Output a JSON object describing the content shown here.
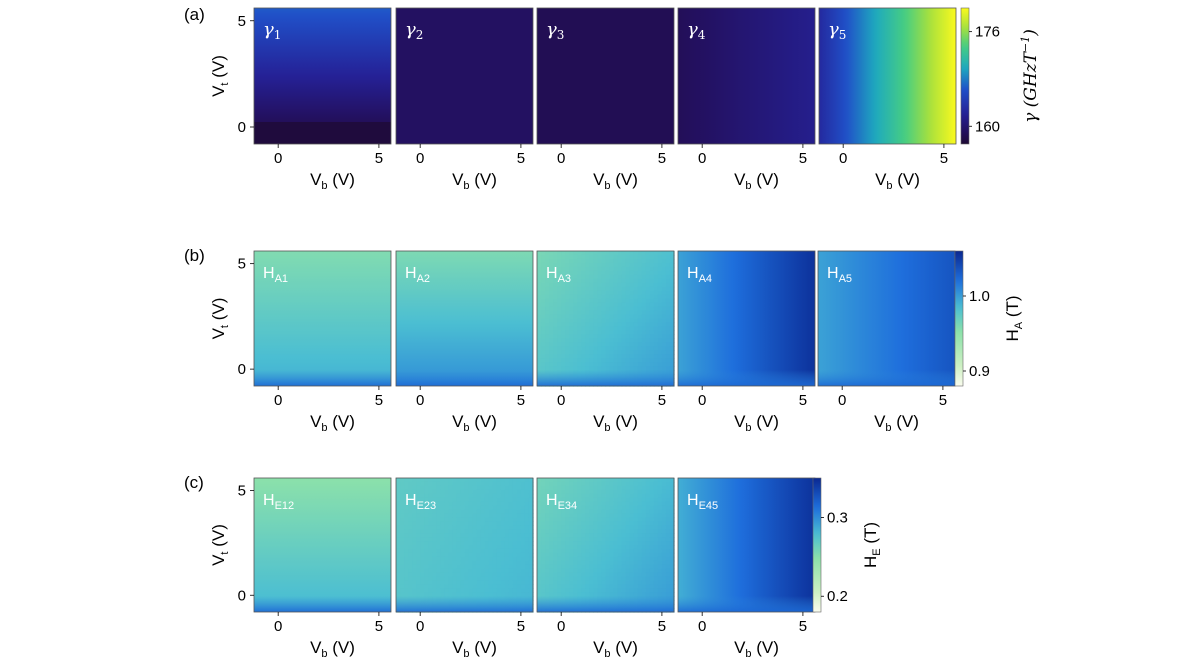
{
  "chart_data": [
    {
      "type": "heatmap",
      "panel_label": "(a)",
      "xlabel": "V",
      "xlabel_sub": "b",
      "xlabel_unit": "(V)",
      "ylabel": "V",
      "ylabel_sub": "t",
      "ylabel_unit": "(V)",
      "x_ticks": [
        "0",
        "5"
      ],
      "y_ticks": [
        "0",
        "5"
      ],
      "xlim": [
        -1.2,
        5.6
      ],
      "ylim": [
        -0.8,
        5.6
      ],
      "colorbar": {
        "label": "γ (GHzT",
        "label_sup": "−1",
        "label_end": ")",
        "ticks": [
          "160",
          "176"
        ],
        "tick_values": [
          160,
          176
        ],
        "range": [
          157,
          180
        ],
        "colormap": "YlGnBu_r"
      },
      "subplots": [
        {
          "name": "γ",
          "sub": "1",
          "pattern": "vertical",
          "vt_bot": 0.02,
          "vt_top": 0.42
        },
        {
          "name": "γ",
          "sub": "2",
          "pattern": "flat",
          "level": 0.1
        },
        {
          "name": "γ",
          "sub": "3",
          "pattern": "flat",
          "level": 0.07
        },
        {
          "name": "γ",
          "sub": "4",
          "pattern": "horizontal",
          "vb_left": 0.08,
          "vb_right": 0.2
        },
        {
          "name": "γ",
          "sub": "5",
          "pattern": "horizontal",
          "vb_left": 0.25,
          "vb_right": 1.0
        }
      ]
    },
    {
      "type": "heatmap",
      "panel_label": "(b)",
      "xlabel": "V",
      "xlabel_sub": "b",
      "xlabel_unit": "(V)",
      "ylabel": "V",
      "ylabel_sub": "t",
      "ylabel_unit": "(V)",
      "x_ticks": [
        "0",
        "5"
      ],
      "y_ticks": [
        "0",
        "5"
      ],
      "xlim": [
        -1.2,
        5.6
      ],
      "ylim": [
        -0.8,
        5.6
      ],
      "colorbar": {
        "label": "H",
        "label_sub": "A",
        "label_end": " (T)",
        "ticks": [
          "0.9",
          "1.0"
        ],
        "tick_values": [
          0.9,
          1.0
        ],
        "range": [
          0.88,
          1.06
        ],
        "colormap": "GnBu"
      },
      "subplots": [
        {
          "name": "H",
          "sub": "A1",
          "pattern": "vertical",
          "vt_bot": 0.62,
          "vt_top": 0.43
        },
        {
          "name": "H",
          "sub": "A2",
          "pattern": "vertical",
          "vt_bot": 0.7,
          "vt_top": 0.44
        },
        {
          "name": "H",
          "sub": "A3",
          "pattern": "corner",
          "base": 0.55,
          "vb_gain": 0.12,
          "vt_gain": 0.1
        },
        {
          "name": "H",
          "sub": "A4",
          "pattern": "horizontal",
          "vb_left": 0.65,
          "vb_right": 0.97
        },
        {
          "name": "H",
          "sub": "A5",
          "pattern": "horizontal",
          "vb_left": 0.65,
          "vb_right": 0.86
        }
      ]
    },
    {
      "type": "heatmap",
      "panel_label": "(c)",
      "xlabel": "V",
      "xlabel_sub": "b",
      "xlabel_unit": "(V)",
      "ylabel": "V",
      "ylabel_sub": "t",
      "ylabel_unit": "(V)",
      "x_ticks": [
        "0",
        "5"
      ],
      "y_ticks": [
        "0",
        "5"
      ],
      "xlim": [
        -1.2,
        5.6
      ],
      "ylim": [
        -0.8,
        5.6
      ],
      "colorbar": {
        "label": "H",
        "label_sub": "E",
        "label_end": " (T)",
        "ticks": [
          "0.2",
          "0.3"
        ],
        "tick_values": [
          0.2,
          0.3
        ],
        "range": [
          0.18,
          0.35
        ],
        "colormap": "GnBu"
      },
      "subplots": [
        {
          "name": "H",
          "sub": "E12",
          "pattern": "vertical",
          "vt_bot": 0.6,
          "vt_top": 0.4
        },
        {
          "name": "H",
          "sub": "E23",
          "pattern": "corner",
          "base": 0.55,
          "vb_gain": 0.05,
          "vt_gain": 0.03
        },
        {
          "name": "H",
          "sub": "E34",
          "pattern": "corner",
          "base": 0.55,
          "vb_gain": 0.12,
          "vt_gain": 0.08
        },
        {
          "name": "H",
          "sub": "E45",
          "pattern": "horizontal",
          "vb_left": 0.62,
          "vb_right": 0.97
        }
      ]
    }
  ]
}
